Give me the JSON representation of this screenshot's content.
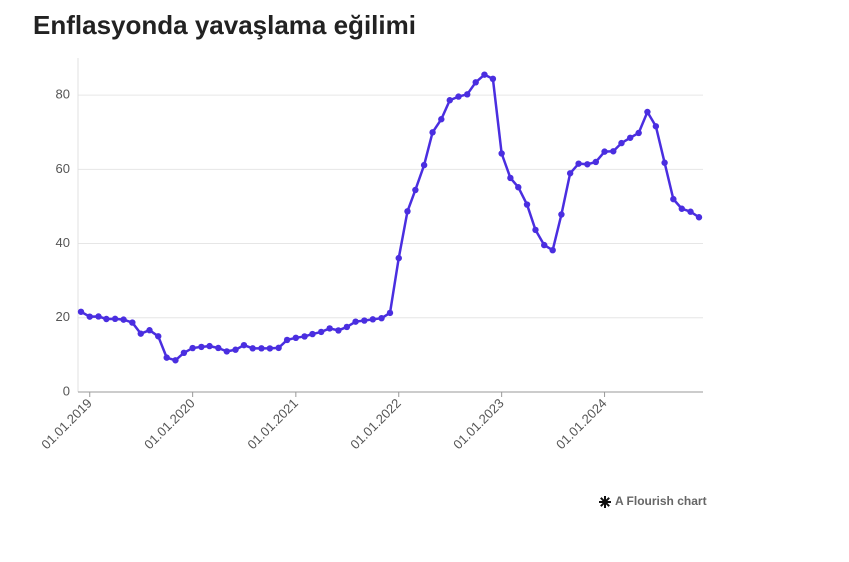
{
  "chart_data": {
    "type": "line",
    "title": "Enflasyonda yavaşlama eğilimi",
    "footer": "A Flourish chart",
    "x": [
      "01.12.2018",
      "01.01.2019",
      "01.02.2019",
      "01.03.2019",
      "01.04.2019",
      "01.05.2019",
      "01.06.2019",
      "01.07.2019",
      "01.08.2019",
      "01.09.2019",
      "01.10.2019",
      "01.11.2019",
      "01.12.2019",
      "01.01.2020",
      "01.02.2020",
      "01.03.2020",
      "01.04.2020",
      "01.05.2020",
      "01.06.2020",
      "01.07.2020",
      "01.08.2020",
      "01.09.2020",
      "01.10.2020",
      "01.11.2020",
      "01.12.2020",
      "01.01.2021",
      "01.02.2021",
      "01.03.2021",
      "01.04.2021",
      "01.05.2021",
      "01.06.2021",
      "01.07.2021",
      "01.08.2021",
      "01.09.2021",
      "01.10.2021",
      "01.11.2021",
      "01.12.2021",
      "01.01.2022",
      "01.02.2022",
      "01.03.2022",
      "01.04.2022",
      "01.05.2022",
      "01.06.2022",
      "01.07.2022",
      "01.08.2022",
      "01.09.2022",
      "01.10.2022",
      "01.11.2022",
      "01.12.2022",
      "01.01.2023",
      "01.02.2023",
      "01.03.2023",
      "01.04.2023",
      "01.05.2023",
      "01.06.2023",
      "01.07.2023",
      "01.08.2023",
      "01.09.2023",
      "01.10.2023",
      "01.11.2023",
      "01.12.2023",
      "01.01.2024",
      "01.02.2024",
      "01.03.2024",
      "01.04.2024",
      "01.05.2024",
      "01.06.2024",
      "01.07.2024",
      "01.08.2024",
      "01.09.2024",
      "01.10.2024",
      "01.11.2024",
      "01.12.2024"
    ],
    "series": [
      {
        "color": "#4a2ee0",
        "values": [
          21.62,
          20.3,
          20.35,
          19.67,
          19.71,
          19.5,
          18.71,
          15.72,
          16.65,
          15.01,
          9.26,
          8.55,
          10.56,
          11.84,
          12.15,
          12.37,
          11.86,
          10.94,
          11.39,
          12.62,
          11.76,
          11.77,
          11.75,
          11.89,
          14.03,
          14.6,
          14.97,
          15.61,
          16.19,
          17.14,
          16.59,
          17.53,
          18.95,
          19.25,
          19.58,
          19.89,
          21.31,
          36.08,
          48.69,
          54.44,
          61.14,
          69.97,
          73.5,
          78.62,
          79.6,
          80.21,
          83.45,
          85.51,
          84.39,
          64.27,
          57.68,
          55.18,
          50.51,
          43.68,
          39.59,
          38.21,
          47.83,
          58.94,
          61.53,
          61.36,
          61.98,
          64.77,
          64.86,
          67.07,
          68.5,
          69.8,
          75.45,
          71.6,
          61.78,
          51.97,
          49.38,
          48.58,
          47.09
        ]
      }
    ],
    "xlim": [
      "01.12.2018",
      "01.12.2024"
    ],
    "xticks": [
      "01.01.2019",
      "01.01.2020",
      "01.01.2021",
      "01.01.2022",
      "01.01.2023",
      "01.01.2024"
    ],
    "ylim": [
      0,
      90
    ],
    "yticks": [
      0,
      20,
      40,
      60,
      80
    ],
    "grid": true
  }
}
